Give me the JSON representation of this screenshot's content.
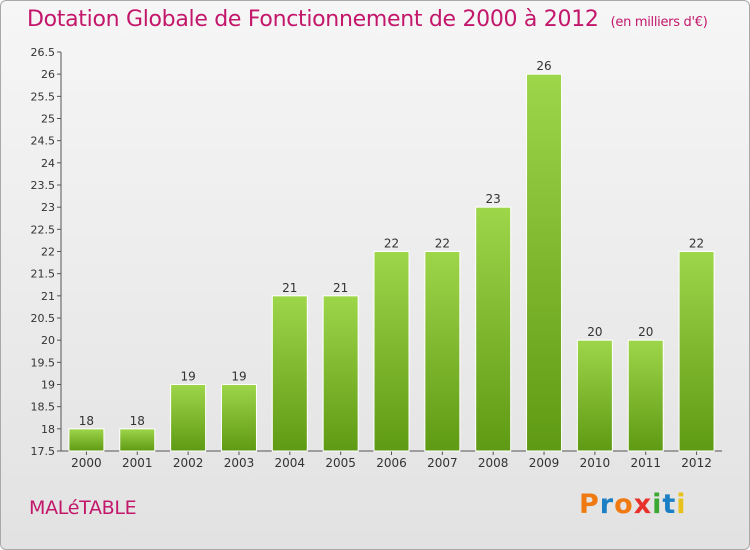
{
  "header": {
    "title": "Dotation Globale de Fonctionnement de 2000 à 2012",
    "unit": "(en milliers d'€)"
  },
  "footer": {
    "commune": "MALéTABLE",
    "brand": [
      "P",
      "r",
      "o",
      "x",
      "i",
      "t",
      "i"
    ]
  },
  "colors": {
    "accent": "#c2176b",
    "bar_top": "#9ed64a",
    "bar_bottom": "#5f9a14",
    "axis": "#555555",
    "grid": "#c8c8c8",
    "brand": [
      "#f07a12",
      "#1a7fc4",
      "#f07a12",
      "#e8312a",
      "#3aa832",
      "#1a7fc4",
      "#e8c21a"
    ]
  },
  "chart_data": {
    "type": "bar",
    "categories": [
      "2000",
      "2001",
      "2002",
      "2003",
      "2004",
      "2005",
      "2006",
      "2007",
      "2008",
      "2009",
      "2010",
      "2011",
      "2012"
    ],
    "values": [
      18,
      18,
      19,
      19,
      21,
      21,
      22,
      22,
      23,
      26,
      20,
      20,
      22
    ],
    "ylim": [
      17.5,
      26.5
    ],
    "yticks": [
      "17.5",
      "18",
      "18.5",
      "19",
      "19.5",
      "20",
      "20.5",
      "21",
      "21.5",
      "22",
      "22.5",
      "23",
      "23.5",
      "24",
      "24.5",
      "25",
      "25.5",
      "26",
      "26.5"
    ],
    "grid": false
  }
}
